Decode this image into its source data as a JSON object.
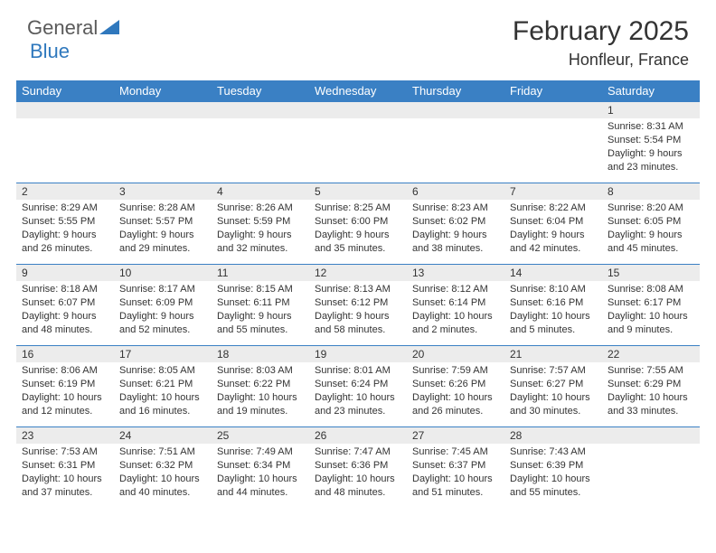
{
  "logo": {
    "word1": "General",
    "word2": "Blue"
  },
  "title": "February 2025",
  "location": "Honfleur, France",
  "colors": {
    "header_bg": "#3a80c4",
    "header_fg": "#ffffff",
    "daynum_bg": "#ececec",
    "rule": "#3a80c4",
    "logo_gray": "#5a5a5a",
    "logo_blue": "#2f78bd"
  },
  "weekdays": [
    "Sunday",
    "Monday",
    "Tuesday",
    "Wednesday",
    "Thursday",
    "Friday",
    "Saturday"
  ],
  "weeks": [
    [
      {
        "n": "",
        "sunrise": "",
        "sunset": "",
        "daylight": ""
      },
      {
        "n": "",
        "sunrise": "",
        "sunset": "",
        "daylight": ""
      },
      {
        "n": "",
        "sunrise": "",
        "sunset": "",
        "daylight": ""
      },
      {
        "n": "",
        "sunrise": "",
        "sunset": "",
        "daylight": ""
      },
      {
        "n": "",
        "sunrise": "",
        "sunset": "",
        "daylight": ""
      },
      {
        "n": "",
        "sunrise": "",
        "sunset": "",
        "daylight": ""
      },
      {
        "n": "1",
        "sunrise": "Sunrise: 8:31 AM",
        "sunset": "Sunset: 5:54 PM",
        "daylight": "Daylight: 9 hours and 23 minutes."
      }
    ],
    [
      {
        "n": "2",
        "sunrise": "Sunrise: 8:29 AM",
        "sunset": "Sunset: 5:55 PM",
        "daylight": "Daylight: 9 hours and 26 minutes."
      },
      {
        "n": "3",
        "sunrise": "Sunrise: 8:28 AM",
        "sunset": "Sunset: 5:57 PM",
        "daylight": "Daylight: 9 hours and 29 minutes."
      },
      {
        "n": "4",
        "sunrise": "Sunrise: 8:26 AM",
        "sunset": "Sunset: 5:59 PM",
        "daylight": "Daylight: 9 hours and 32 minutes."
      },
      {
        "n": "5",
        "sunrise": "Sunrise: 8:25 AM",
        "sunset": "Sunset: 6:00 PM",
        "daylight": "Daylight: 9 hours and 35 minutes."
      },
      {
        "n": "6",
        "sunrise": "Sunrise: 8:23 AM",
        "sunset": "Sunset: 6:02 PM",
        "daylight": "Daylight: 9 hours and 38 minutes."
      },
      {
        "n": "7",
        "sunrise": "Sunrise: 8:22 AM",
        "sunset": "Sunset: 6:04 PM",
        "daylight": "Daylight: 9 hours and 42 minutes."
      },
      {
        "n": "8",
        "sunrise": "Sunrise: 8:20 AM",
        "sunset": "Sunset: 6:05 PM",
        "daylight": "Daylight: 9 hours and 45 minutes."
      }
    ],
    [
      {
        "n": "9",
        "sunrise": "Sunrise: 8:18 AM",
        "sunset": "Sunset: 6:07 PM",
        "daylight": "Daylight: 9 hours and 48 minutes."
      },
      {
        "n": "10",
        "sunrise": "Sunrise: 8:17 AM",
        "sunset": "Sunset: 6:09 PM",
        "daylight": "Daylight: 9 hours and 52 minutes."
      },
      {
        "n": "11",
        "sunrise": "Sunrise: 8:15 AM",
        "sunset": "Sunset: 6:11 PM",
        "daylight": "Daylight: 9 hours and 55 minutes."
      },
      {
        "n": "12",
        "sunrise": "Sunrise: 8:13 AM",
        "sunset": "Sunset: 6:12 PM",
        "daylight": "Daylight: 9 hours and 58 minutes."
      },
      {
        "n": "13",
        "sunrise": "Sunrise: 8:12 AM",
        "sunset": "Sunset: 6:14 PM",
        "daylight": "Daylight: 10 hours and 2 minutes."
      },
      {
        "n": "14",
        "sunrise": "Sunrise: 8:10 AM",
        "sunset": "Sunset: 6:16 PM",
        "daylight": "Daylight: 10 hours and 5 minutes."
      },
      {
        "n": "15",
        "sunrise": "Sunrise: 8:08 AM",
        "sunset": "Sunset: 6:17 PM",
        "daylight": "Daylight: 10 hours and 9 minutes."
      }
    ],
    [
      {
        "n": "16",
        "sunrise": "Sunrise: 8:06 AM",
        "sunset": "Sunset: 6:19 PM",
        "daylight": "Daylight: 10 hours and 12 minutes."
      },
      {
        "n": "17",
        "sunrise": "Sunrise: 8:05 AM",
        "sunset": "Sunset: 6:21 PM",
        "daylight": "Daylight: 10 hours and 16 minutes."
      },
      {
        "n": "18",
        "sunrise": "Sunrise: 8:03 AM",
        "sunset": "Sunset: 6:22 PM",
        "daylight": "Daylight: 10 hours and 19 minutes."
      },
      {
        "n": "19",
        "sunrise": "Sunrise: 8:01 AM",
        "sunset": "Sunset: 6:24 PM",
        "daylight": "Daylight: 10 hours and 23 minutes."
      },
      {
        "n": "20",
        "sunrise": "Sunrise: 7:59 AM",
        "sunset": "Sunset: 6:26 PM",
        "daylight": "Daylight: 10 hours and 26 minutes."
      },
      {
        "n": "21",
        "sunrise": "Sunrise: 7:57 AM",
        "sunset": "Sunset: 6:27 PM",
        "daylight": "Daylight: 10 hours and 30 minutes."
      },
      {
        "n": "22",
        "sunrise": "Sunrise: 7:55 AM",
        "sunset": "Sunset: 6:29 PM",
        "daylight": "Daylight: 10 hours and 33 minutes."
      }
    ],
    [
      {
        "n": "23",
        "sunrise": "Sunrise: 7:53 AM",
        "sunset": "Sunset: 6:31 PM",
        "daylight": "Daylight: 10 hours and 37 minutes."
      },
      {
        "n": "24",
        "sunrise": "Sunrise: 7:51 AM",
        "sunset": "Sunset: 6:32 PM",
        "daylight": "Daylight: 10 hours and 40 minutes."
      },
      {
        "n": "25",
        "sunrise": "Sunrise: 7:49 AM",
        "sunset": "Sunset: 6:34 PM",
        "daylight": "Daylight: 10 hours and 44 minutes."
      },
      {
        "n": "26",
        "sunrise": "Sunrise: 7:47 AM",
        "sunset": "Sunset: 6:36 PM",
        "daylight": "Daylight: 10 hours and 48 minutes."
      },
      {
        "n": "27",
        "sunrise": "Sunrise: 7:45 AM",
        "sunset": "Sunset: 6:37 PM",
        "daylight": "Daylight: 10 hours and 51 minutes."
      },
      {
        "n": "28",
        "sunrise": "Sunrise: 7:43 AM",
        "sunset": "Sunset: 6:39 PM",
        "daylight": "Daylight: 10 hours and 55 minutes."
      },
      {
        "n": "",
        "sunrise": "",
        "sunset": "",
        "daylight": ""
      }
    ]
  ]
}
